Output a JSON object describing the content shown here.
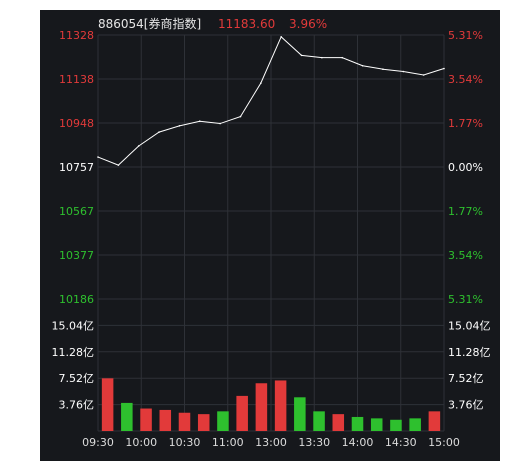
{
  "header": {
    "code_name": "886054[券商指数]",
    "price": "11183.60",
    "change_pct": "3.96%"
  },
  "colors": {
    "background": "#16181c",
    "grid": "#2e3137",
    "up": "#e23a3a",
    "down": "#2ec02e",
    "neutral": "#ffffff",
    "price_line": "#ffffff"
  },
  "chart_data": [
    {
      "type": "line",
      "baseline": 10757,
      "ylim": [
        10186,
        11328
      ],
      "y_tick_labels_left": [
        "11328",
        "11138",
        "10948",
        "10757",
        "10567",
        "10377",
        "10186"
      ],
      "y_tick_labels_right": [
        "5.31%",
        "3.54%",
        "1.77%",
        "0.00%",
        "1.77%",
        "3.54%",
        "5.31%"
      ],
      "grid": true,
      "series": [
        {
          "x": [
            "09:30",
            "09:45",
            "10:00",
            "10:15",
            "10:30",
            "10:45",
            "11:00",
            "11:15",
            "11:30",
            "13:00",
            "13:15",
            "13:30",
            "13:45",
            "14:00",
            "14:15",
            "14:30",
            "14:45",
            "15:00"
          ],
          "values": [
            10800,
            10765,
            10848,
            10908,
            10935,
            10955,
            10945,
            10975,
            11120,
            11320,
            11240,
            11230,
            11230,
            11195,
            11180,
            11170,
            11155,
            11183
          ]
        }
      ]
    },
    {
      "type": "bar",
      "y_tick_labels_left": [
        "15.04亿",
        "11.28亿",
        "7.52亿",
        "3.76亿"
      ],
      "y_tick_labels_right": [
        "15.04亿",
        "11.28亿",
        "7.52亿",
        "3.76亿"
      ],
      "ylim": [
        0,
        18.8
      ],
      "x_tick_labels": [
        "09:30",
        "10:00",
        "10:30",
        "11:00",
        "13:00",
        "13:30",
        "14:00",
        "14:30",
        "15:00"
      ],
      "grid": true,
      "series": [
        {
          "name": "",
          "x": [
            "09:30",
            "09:45",
            "10:00",
            "10:15",
            "10:30",
            "10:45",
            "11:00",
            "11:15",
            "11:30",
            "13:00",
            "13:15",
            "13:30",
            "13:45",
            "14:00",
            "14:15",
            "14:30",
            "14:45",
            "15:00"
          ],
          "values": [
            7.5,
            4.0,
            3.2,
            3.0,
            2.6,
            2.4,
            2.8,
            5.0,
            6.8,
            7.2,
            4.8,
            2.8,
            2.4,
            2.0,
            1.8,
            1.6,
            1.8,
            2.8
          ]
        }
      ]
    }
  ]
}
